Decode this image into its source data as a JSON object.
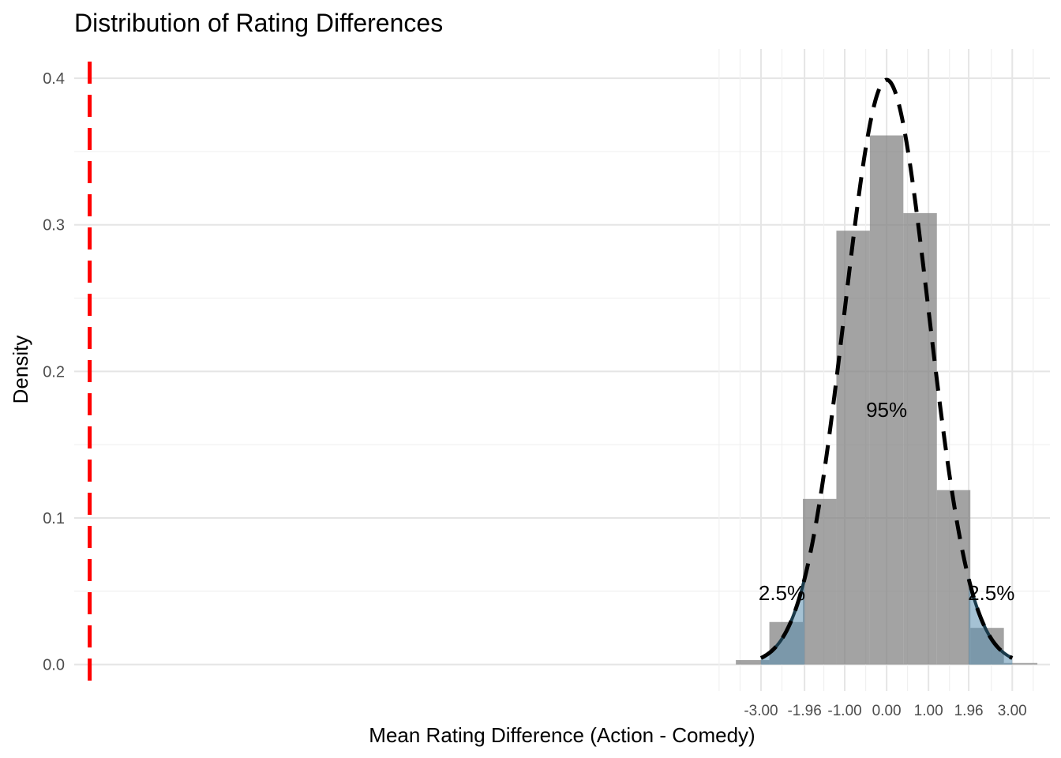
{
  "chart_data": {
    "type": "histogram",
    "title": "Distribution of Rating Differences",
    "xlabel": "Mean Rating Difference (Action - Comedy)",
    "ylabel": "Density",
    "xlim": [
      -19.4,
      3.9
    ],
    "ylim": [
      -0.018,
      0.42
    ],
    "y_ticks": [
      {
        "value": 0.0,
        "label": "0.0"
      },
      {
        "value": 0.1,
        "label": "0.1"
      },
      {
        "value": 0.2,
        "label": "0.2"
      },
      {
        "value": 0.3,
        "label": "0.3"
      },
      {
        "value": 0.4,
        "label": "0.4"
      }
    ],
    "x_ticks": [
      {
        "value": -3.0,
        "label": "-3.00"
      },
      {
        "value": -1.96,
        "label": "-1.96"
      },
      {
        "value": -1.0,
        "label": "-1.00"
      },
      {
        "value": 0.0,
        "label": "0.00"
      },
      {
        "value": 1.0,
        "label": "1.00"
      },
      {
        "value": 1.96,
        "label": "1.96"
      },
      {
        "value": 3.0,
        "label": "3.00"
      }
    ],
    "x_minor_gridlines": [
      -4.0,
      -3.5,
      -2.5,
      -1.5,
      -0.5,
      0.5,
      1.5,
      2.5,
      3.5
    ],
    "grid": true,
    "histogram": {
      "color": "#808080",
      "bins": [
        {
          "x0": -3.6,
          "x1": -2.8,
          "density": 0.003
        },
        {
          "x0": -2.8,
          "x1": -2.0,
          "density": 0.029
        },
        {
          "x0": -2.0,
          "x1": -1.2,
          "density": 0.113
        },
        {
          "x0": -1.2,
          "x1": -0.4,
          "density": 0.296
        },
        {
          "x0": -0.4,
          "x1": 0.4,
          "density": 0.361
        },
        {
          "x0": 0.4,
          "x1": 1.2,
          "density": 0.308
        },
        {
          "x0": 1.2,
          "x1": 2.0,
          "density": 0.119
        },
        {
          "x0": 2.0,
          "x1": 2.8,
          "density": 0.025
        },
        {
          "x0": 2.8,
          "x1": 3.6,
          "density": 0.001
        }
      ]
    },
    "normal_curve": {
      "mean": 0,
      "sd": 1,
      "xrange": [
        -3,
        3
      ],
      "style": "dashed",
      "color": "#000000"
    },
    "shaded_tails": [
      {
        "x0": -3.0,
        "x1": -1.96,
        "color": "#5b8fb0"
      },
      {
        "x0": 1.96,
        "x1": 3.0,
        "color": "#5b8fb0"
      }
    ],
    "observed_line": {
      "x": -19.03,
      "color": "#ff0000",
      "style": "dashed"
    },
    "annotations": [
      {
        "text": "2.5%",
        "x": -2.5,
        "y": 0.044
      },
      {
        "text": "95%",
        "x": 0.0,
        "y": 0.169
      },
      {
        "text": "2.5%",
        "x": 2.5,
        "y": 0.044
      }
    ]
  }
}
